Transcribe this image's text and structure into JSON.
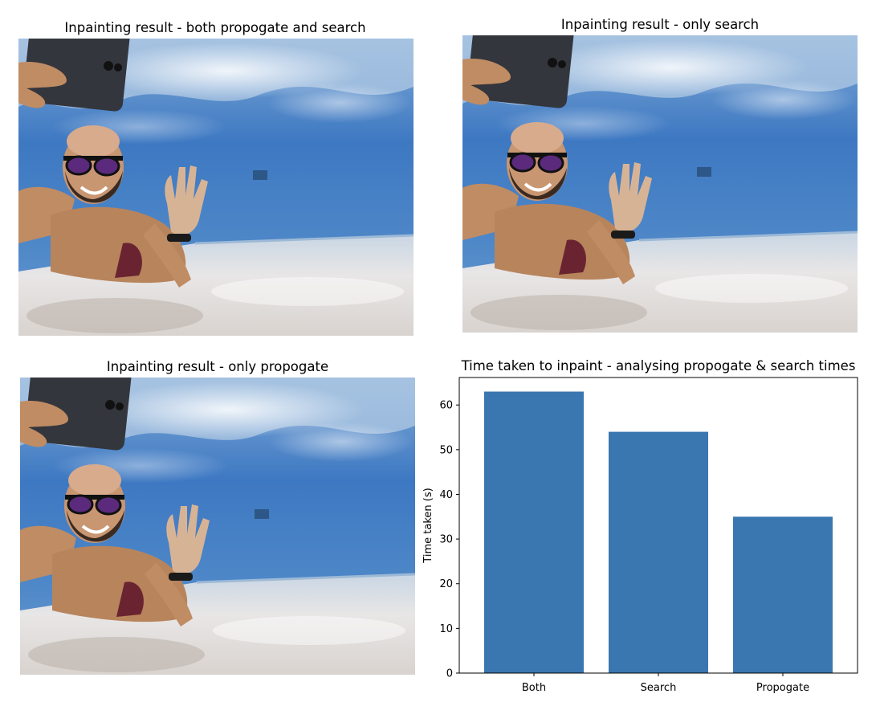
{
  "panels": [
    {
      "title": "Inpainting result - both propogate and search"
    },
    {
      "title": "Inpainting result - only search"
    },
    {
      "title": "Inpainting result - only propogate"
    }
  ],
  "colors": {
    "bar": "#3a76b0",
    "water_top": "#7fa9d6",
    "water_mid": "#3d78c2",
    "floor": "#e8e6e6",
    "skin": "#c08c63"
  },
  "chart_data": {
    "type": "bar",
    "title": "Time taken to inpaint - analysing propogate & search times",
    "xlabel": "",
    "ylabel": "Time taken (s)",
    "categories": [
      "Both",
      "Search",
      "Propogate"
    ],
    "values": [
      63,
      54,
      35
    ],
    "ylim": [
      0,
      66.15
    ],
    "yticks": [
      0,
      10,
      20,
      30,
      40,
      50,
      60
    ],
    "grid": false,
    "legend": "none"
  }
}
